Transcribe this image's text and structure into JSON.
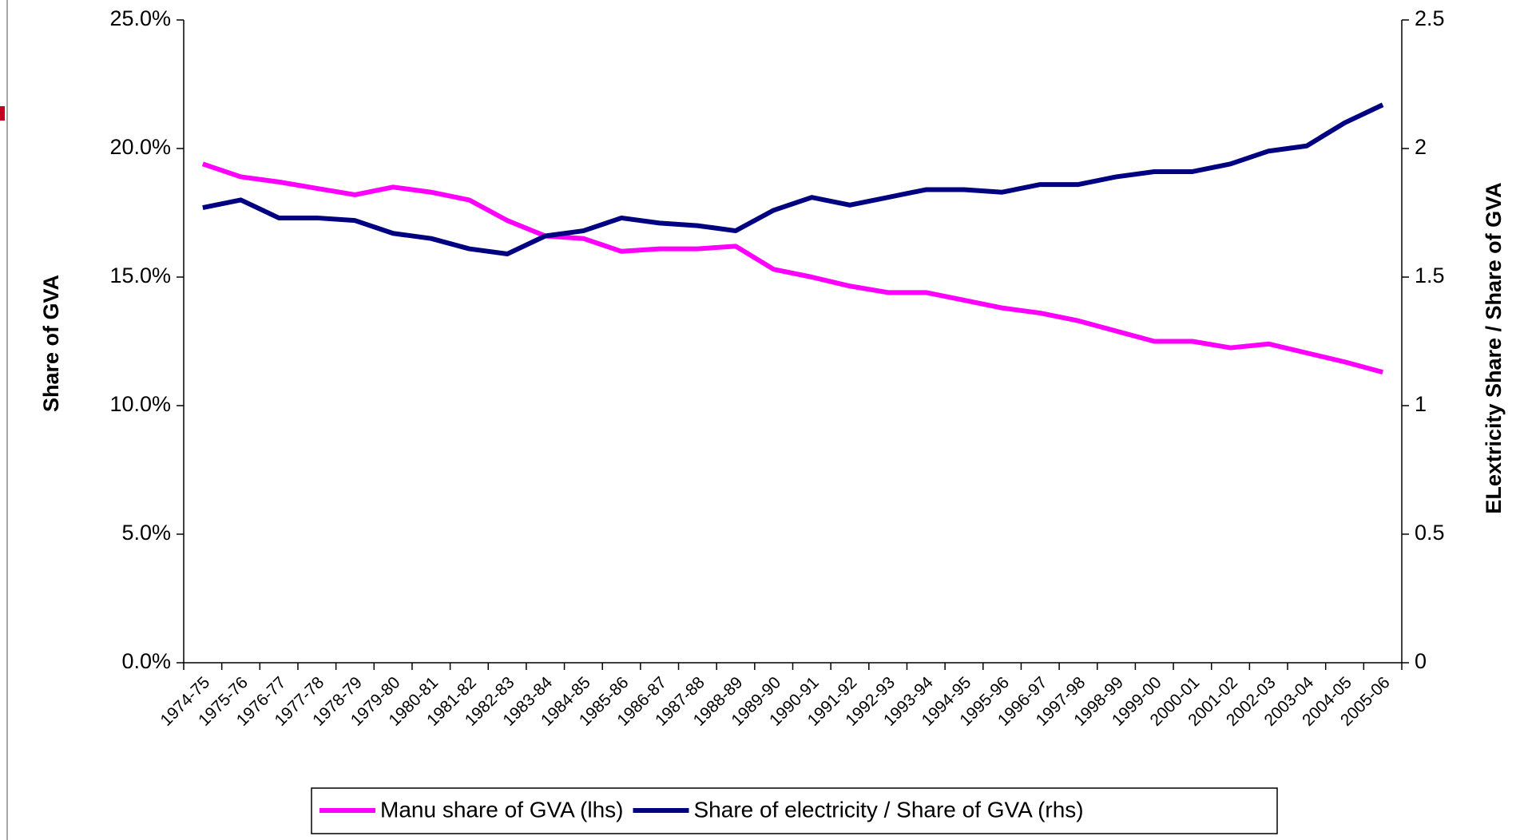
{
  "chart_data": {
    "type": "line",
    "y_label": "Share of GVA",
    "y2_label": "ELextricity Share / Share of GVA",
    "categories": [
      "1974-75",
      "1975-76",
      "1976-77",
      "1977-78",
      "1978-79",
      "1979-80",
      "1980-81",
      "1981-82",
      "1982-83",
      "1983-84",
      "1984-85",
      "1985-86",
      "1986-87",
      "1987-88",
      "1988-89",
      "1989-90",
      "1990-91",
      "1991-92",
      "1992-93",
      "1993-94",
      "1994-95",
      "1995-96",
      "1996-97",
      "1997-98",
      "1998-99",
      "1999-00",
      "2000-01",
      "2001-02",
      "2002-03",
      "2003-04",
      "2004-05",
      "2005-06"
    ],
    "series": [
      {
        "name": "Manu share of GVA (lhs)",
        "color": "#ff00ff",
        "axis": "y",
        "values": [
          19.4,
          18.9,
          18.7,
          18.45,
          18.2,
          18.5,
          18.3,
          18.0,
          17.2,
          16.6,
          16.5,
          16.0,
          16.1,
          16.1,
          16.2,
          15.3,
          15.0,
          14.65,
          14.4,
          14.4,
          14.1,
          13.8,
          13.6,
          13.3,
          12.9,
          12.5,
          12.5,
          12.25,
          12.4,
          12.05,
          11.7,
          11.3
        ]
      },
      {
        "name": "Share of electricity / Share of GVA (rhs)",
        "color": "#000080",
        "axis": "y2",
        "values": [
          1.77,
          1.8,
          1.73,
          1.73,
          1.72,
          1.67,
          1.65,
          1.61,
          1.59,
          1.66,
          1.68,
          1.73,
          1.71,
          1.7,
          1.68,
          1.76,
          1.81,
          1.78,
          1.81,
          1.84,
          1.84,
          1.83,
          1.86,
          1.86,
          1.89,
          1.91,
          1.91,
          1.94,
          1.99,
          2.01,
          2.1,
          2.17
        ]
      }
    ],
    "ylim": [
      0,
      25
    ],
    "yticks": [
      {
        "value": 0,
        "label": "0.0%"
      },
      {
        "value": 5,
        "label": "5.0%"
      },
      {
        "value": 10,
        "label": "10.0%"
      },
      {
        "value": 15,
        "label": "15.0%"
      },
      {
        "value": 20,
        "label": "20.0%"
      },
      {
        "value": 25,
        "label": "25.0%"
      }
    ],
    "y2lim": [
      0,
      2.5
    ],
    "y2ticks": [
      0,
      0.5,
      1,
      1.5,
      2,
      2.5
    ],
    "legend": "bottom"
  }
}
